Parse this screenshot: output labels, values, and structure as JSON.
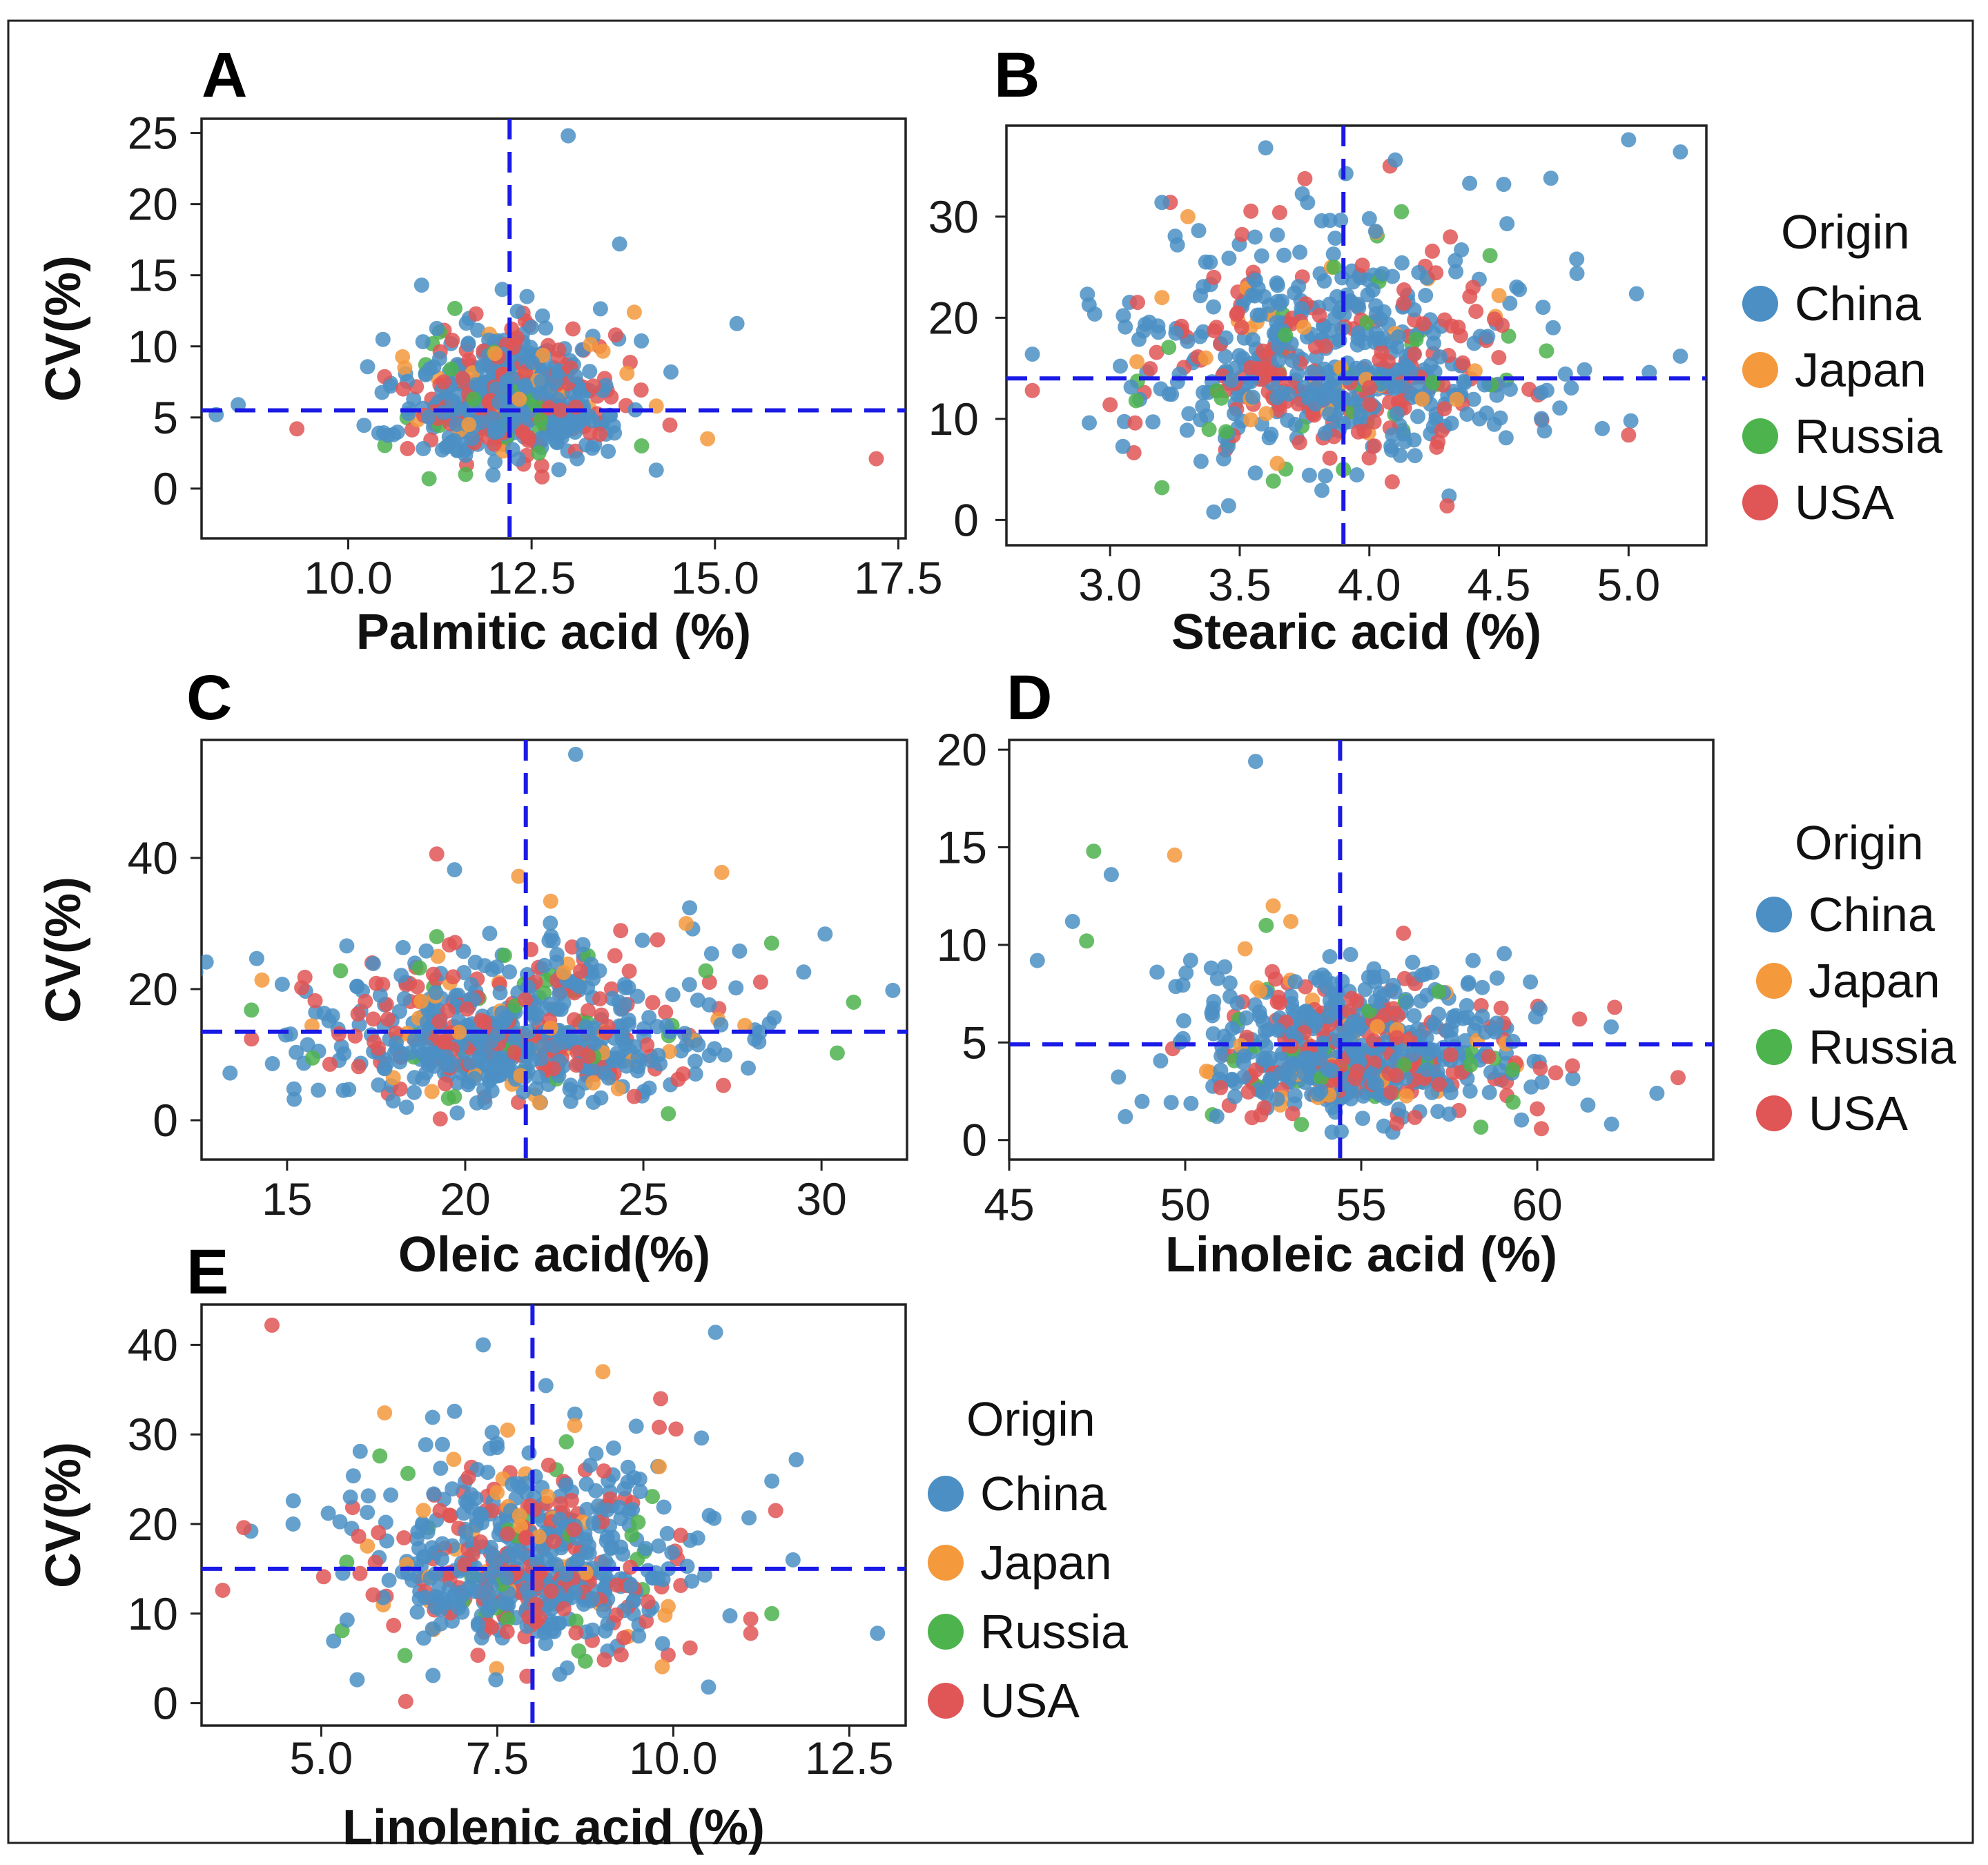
{
  "colors": {
    "China": "#4b8fc4",
    "Japan": "#f5993d",
    "Russia": "#4db34d",
    "USA": "#e05555",
    "refline": "#1a1ae6"
  },
  "chart_data": [
    {
      "id": "A",
      "type": "scatter",
      "panel_label": "A",
      "xlabel": "Palmitic acid (%)",
      "ylabel": "CV(%)",
      "xlim": [
        8.0,
        17.6
      ],
      "ylim": [
        -3.5,
        26.0
      ],
      "xticks": [
        10.0,
        12.5,
        15.0,
        17.5
      ],
      "xtick_labels": [
        "10.0",
        "12.5",
        "15.0",
        "17.5"
      ],
      "yticks": [
        0,
        5,
        10,
        15,
        20,
        25
      ],
      "ytick_labels": [
        "0",
        "5",
        "10",
        "15",
        "20",
        "25"
      ],
      "ref_x": 12.2,
      "ref_y": 5.5,
      "cluster": {
        "x_mean": 12.2,
        "x_sd": 0.7,
        "y_mean": 6.0,
        "y_sd": 2.3,
        "y_min": 0.5
      },
      "points": {
        "China": [
          [
            13.0,
            24.8
          ],
          [
            13.7,
            17.2
          ],
          [
            15.3,
            11.6
          ],
          [
            11.0,
            14.3
          ],
          [
            14.4,
            8.2
          ],
          [
            8.2,
            5.2
          ],
          [
            8.5,
            5.9
          ],
          [
            14.2,
            1.3
          ],
          [
            12.1,
            14.0
          ]
        ],
        "Japan": [
          [
            13.9,
            12.4
          ],
          [
            14.9,
            3.5
          ],
          [
            14.2,
            5.8
          ],
          [
            13.8,
            8.1
          ],
          [
            12.0,
            9.5
          ]
        ],
        "Russia": [
          [
            14.0,
            3.0
          ],
          [
            11.6,
            1.0
          ],
          [
            12.6,
            2.5
          ]
        ],
        "USA": [
          [
            9.3,
            4.2
          ],
          [
            17.2,
            2.1
          ],
          [
            12.3,
            10.6
          ],
          [
            11.3,
            7.5
          ]
        ]
      },
      "legend": null
    },
    {
      "id": "B",
      "type": "scatter",
      "panel_label": "B",
      "xlabel": "Stearic acid (%)",
      "ylabel": "",
      "xlim": [
        2.6,
        5.3
      ],
      "ylim": [
        -2.5,
        39.0
      ],
      "xticks": [
        3.0,
        3.5,
        4.0,
        4.5,
        5.0
      ],
      "xtick_labels": [
        "3.0",
        "3.5",
        "4.0",
        "4.5",
        "5.0"
      ],
      "yticks": [
        0,
        10,
        20,
        30
      ],
      "ytick_labels": [
        "0",
        "10",
        "20",
        "30"
      ],
      "ref_x": 3.9,
      "ref_y": 14.0,
      "cluster": {
        "x_mean": 3.85,
        "x_sd": 0.4,
        "y_mean": 15.0,
        "y_sd": 5.8,
        "y_min": 1.0
      },
      "points": {
        "China": [
          [
            3.6,
            36.8
          ],
          [
            4.1,
            35.6
          ],
          [
            5.0,
            37.6
          ],
          [
            5.2,
            36.4
          ],
          [
            3.2,
            31.4
          ],
          [
            4.7,
            33.8
          ],
          [
            4.8,
            25.8
          ],
          [
            2.7,
            16.4
          ],
          [
            5.2,
            16.2
          ],
          [
            3.4,
            0.8
          ],
          [
            4.0,
            29.8
          ]
        ],
        "Japan": [
          [
            3.3,
            30.0
          ],
          [
            3.2,
            22.0
          ],
          [
            4.5,
            22.2
          ]
        ],
        "Russia": [
          [
            3.2,
            3.2
          ],
          [
            3.1,
            11.8
          ],
          [
            3.9,
            5.0
          ]
        ],
        "USA": [
          [
            2.7,
            12.8
          ],
          [
            3.0,
            11.4
          ],
          [
            5.0,
            8.4
          ],
          [
            4.4,
            23.0
          ],
          [
            3.4,
            24.0
          ],
          [
            4.3,
            1.4
          ]
        ]
      },
      "legend": {
        "title": "Origin",
        "entries": [
          "China",
          "Japan",
          "Russia",
          "USA"
        ]
      }
    },
    {
      "id": "C",
      "type": "scatter",
      "panel_label": "C",
      "xlabel": "Oleic acid(%)",
      "ylabel": "CV(%)",
      "xlim": [
        12.6,
        32.4
      ],
      "ylim": [
        -6.0,
        58.0
      ],
      "xticks": [
        15,
        20,
        25,
        30
      ],
      "xtick_labels": [
        "15",
        "20",
        "25",
        "30"
      ],
      "yticks": [
        0,
        20,
        40
      ],
      "ytick_labels": [
        "0",
        "20",
        "40"
      ],
      "ref_x": 21.7,
      "ref_y": 13.5,
      "cluster": {
        "x_mean": 21.5,
        "x_sd": 2.8,
        "y_mean": 12.5,
        "y_sd": 6.0,
        "y_min": 1.0
      },
      "points": {
        "China": [
          [
            23.1,
            55.8
          ],
          [
            19.7,
            38.2
          ],
          [
            13.4,
            7.2
          ],
          [
            15.2,
            3.2
          ],
          [
            32.0,
            19.8
          ],
          [
            30.1,
            28.4
          ],
          [
            29.5,
            22.6
          ],
          [
            27.7,
            25.8
          ],
          [
            26.3,
            32.4
          ]
        ],
        "Japan": [
          [
            27.2,
            37.8
          ],
          [
            21.5,
            37.2
          ],
          [
            26.2,
            30.0
          ],
          [
            22.4,
            33.4
          ]
        ],
        "Russia": [
          [
            14.0,
            16.8
          ],
          [
            16.5,
            22.8
          ],
          [
            25.7,
            1.0
          ],
          [
            28.6,
            27.0
          ],
          [
            30.9,
            18.0
          ],
          [
            19.2,
            28.0
          ]
        ],
        "USA": [
          [
            19.2,
            40.6
          ],
          [
            15.5,
            21.8
          ],
          [
            14.0,
            12.4
          ],
          [
            19.3,
            0.2
          ]
        ]
      },
      "legend": null
    },
    {
      "id": "D",
      "type": "scatter",
      "panel_label": "D",
      "xlabel": "Linoleic acid (%)",
      "ylabel": "",
      "xlim": [
        45.0,
        65.0
      ],
      "ylim": [
        -1.0,
        20.5
      ],
      "xticks": [
        45,
        50,
        55,
        60
      ],
      "xtick_labels": [
        "45",
        "50",
        "55",
        "60"
      ],
      "yticks": [
        0,
        5,
        10,
        15,
        20
      ],
      "ytick_labels": [
        "0",
        "5",
        "10",
        "15",
        "20"
      ],
      "ref_x": 54.4,
      "ref_y": 4.9,
      "cluster": {
        "x_mean": 54.8,
        "x_sd": 2.3,
        "y_mean": 4.3,
        "y_sd": 1.9,
        "y_min": 0.2
      },
      "points": {
        "China": [
          [
            52.0,
            19.4
          ],
          [
            45.8,
            9.2
          ],
          [
            47.9,
            13.6
          ],
          [
            46.8,
            11.2
          ],
          [
            63.4,
            2.4
          ],
          [
            62.1,
            5.8
          ],
          [
            48.3,
            1.2
          ],
          [
            49.2,
            8.6
          ]
        ],
        "Japan": [
          [
            49.7,
            14.6
          ],
          [
            52.5,
            12.0
          ],
          [
            53.0,
            11.2
          ],
          [
            51.7,
            9.8
          ]
        ],
        "Russia": [
          [
            47.4,
            14.8
          ],
          [
            52.3,
            11.0
          ],
          [
            47.2,
            10.2
          ],
          [
            53.3,
            0.8
          ],
          [
            57.2,
            7.6
          ],
          [
            59.3,
            3.6
          ]
        ],
        "USA": [
          [
            62.2,
            6.8
          ],
          [
            61.2,
            6.2
          ],
          [
            64.0,
            3.2
          ],
          [
            61.0,
            3.8
          ],
          [
            60.0,
            1.6
          ],
          [
            56.2,
            10.6
          ]
        ]
      },
      "legend": {
        "title": "Origin",
        "entries": [
          "China",
          "Japan",
          "Russia",
          "USA"
        ]
      }
    },
    {
      "id": "E",
      "type": "scatter",
      "panel_label": "E",
      "xlabel": "Linolenic acid (%)",
      "ylabel": "CV(%)",
      "xlim": [
        3.3,
        13.3
      ],
      "ylim": [
        -2.5,
        44.5
      ],
      "xticks": [
        5.0,
        7.5,
        10.0,
        12.5
      ],
      "xtick_labels": [
        "5.0",
        "7.5",
        "10.0",
        "12.5"
      ],
      "yticks": [
        0,
        10,
        20,
        30,
        40
      ],
      "ytick_labels": [
        "0",
        "10",
        "20",
        "30",
        "40"
      ],
      "ref_x": 8.0,
      "ref_y": 15.0,
      "cluster": {
        "x_mean": 8.0,
        "x_sd": 1.1,
        "y_mean": 15.5,
        "y_sd": 5.8,
        "y_min": 1.5
      },
      "points": {
        "China": [
          [
            10.6,
            41.4
          ],
          [
            7.3,
            40.0
          ],
          [
            10.5,
            1.8
          ],
          [
            12.9,
            7.8
          ],
          [
            11.7,
            16.0
          ],
          [
            4.6,
            20.0
          ],
          [
            5.1,
            21.2
          ],
          [
            4.0,
            19.2
          ],
          [
            11.4,
            24.8
          ],
          [
            10.4,
            29.6
          ]
        ],
        "Japan": [
          [
            5.9,
            32.4
          ],
          [
            9.0,
            37.0
          ],
          [
            8.6,
            31.0
          ],
          [
            9.8,
            26.4
          ]
        ],
        "Russia": [
          [
            11.4,
            10.0
          ],
          [
            9.5,
            20.2
          ]
        ],
        "USA": [
          [
            4.3,
            42.2
          ],
          [
            3.6,
            12.6
          ],
          [
            3.9,
            19.6
          ],
          [
            11.1,
            9.4
          ],
          [
            11.1,
            7.8
          ],
          [
            6.2,
            0.2
          ],
          [
            9.8,
            30.8
          ]
        ]
      },
      "legend": {
        "title": "Origin",
        "entries": [
          "China",
          "Japan",
          "Russia",
          "USA"
        ]
      }
    }
  ]
}
